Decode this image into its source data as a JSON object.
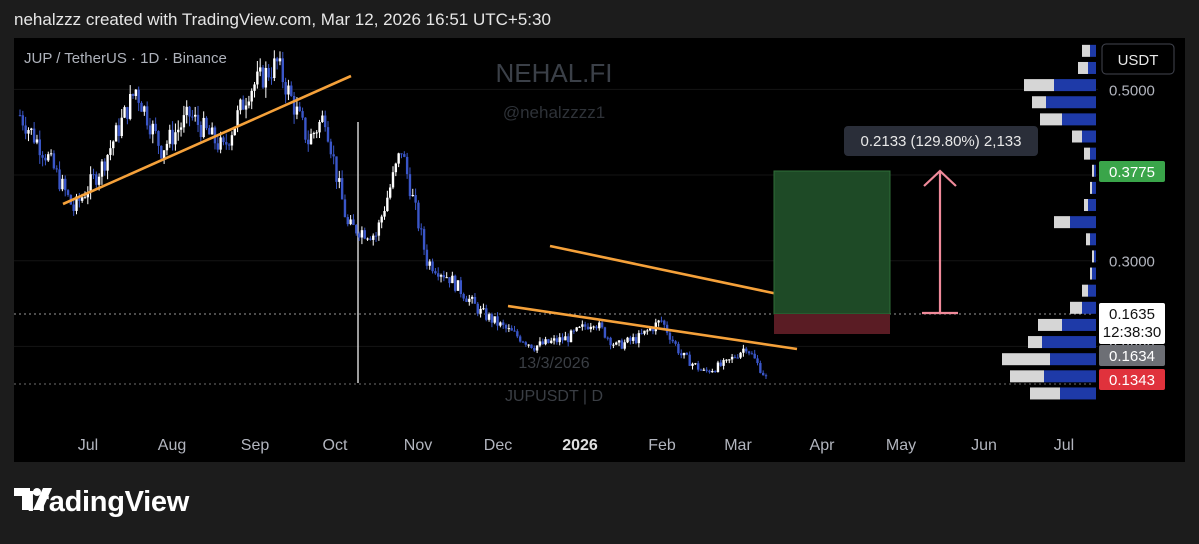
{
  "header": {
    "caption": "nehalzzz created with TradingView.com, Mar 12, 2026 16:51 UTC+5:30"
  },
  "symbol": {
    "title": "JUP / TetherUS · 1D · Binance"
  },
  "watermark": {
    "brand": "NEHAL.FI",
    "handle": "@nehalzzzz1",
    "date": "13/3/2026",
    "ticker": "JUPUSDT | D"
  },
  "price_scale": {
    "currency": "USDT",
    "ticks": [
      "0.5000",
      "0.4000",
      "0.3000",
      "0.2000"
    ],
    "tick_values": [
      0.5,
      0.4,
      0.3,
      0.2
    ],
    "target_label": "0.3775",
    "last_price": "0.1635",
    "countdown": "12:38:30",
    "prev_label": "0.1634",
    "stop_label": "0.1343"
  },
  "measure": {
    "label": "0.2133 (129.80%) 2,133"
  },
  "time_axis": {
    "labels": [
      "Jul",
      "Aug",
      "Sep",
      "Oct",
      "Nov",
      "Dec",
      "2026",
      "Feb",
      "Mar",
      "Apr",
      "May",
      "Jun",
      "Jul"
    ]
  },
  "footer": {
    "brand": "TradingView"
  },
  "colors": {
    "background": "#000000",
    "candle_up": "#ffffff",
    "candle_down": "#3a56c8",
    "trendline": "#f5a13a",
    "target_zone": "#1e4a26",
    "stop_zone": "#5a1c24",
    "measure_arrow": "#f08a9a",
    "volume_profile_up": "#d6d6d6",
    "volume_profile_down": "#1e3aa8",
    "target_badge": "#3aa54a",
    "stop_badge": "#e0323c"
  },
  "chart_data": {
    "type": "candlestick",
    "title": "JUP / TetherUS · 1D · Binance",
    "xlabel": "",
    "ylabel": "",
    "ylim": [
      0.1,
      0.56
    ],
    "x": [
      "2025-06-21",
      "2025-07-01",
      "2025-07-10",
      "2025-07-20",
      "2025-08-01",
      "2025-08-10",
      "2025-08-20",
      "2025-09-01",
      "2025-09-10",
      "2025-09-20",
      "2025-10-01",
      "2025-10-07",
      "2025-10-11",
      "2025-10-15",
      "2025-10-25",
      "2025-11-03",
      "2025-11-12",
      "2025-11-20",
      "2025-12-01",
      "2025-12-10",
      "2025-12-20",
      "2026-01-01",
      "2026-01-10",
      "2026-01-18",
      "2026-01-26",
      "2026-02-03",
      "2026-02-10",
      "2026-02-18",
      "2026-02-26",
      "2026-03-05",
      "2026-03-12"
    ],
    "close": [
      0.47,
      0.42,
      0.36,
      0.41,
      0.5,
      0.43,
      0.47,
      0.43,
      0.5,
      0.53,
      0.44,
      0.47,
      0.4,
      0.34,
      0.33,
      0.43,
      0.3,
      0.28,
      0.24,
      0.22,
      0.2,
      0.21,
      0.23,
      0.2,
      0.21,
      0.23,
      0.19,
      0.17,
      0.18,
      0.2,
      0.1635
    ],
    "notes": [
      "0.2133 (129.80%) 2,133"
    ],
    "levels": {
      "target": 0.3775,
      "entry": 0.1635,
      "stop": 0.1343
    }
  }
}
